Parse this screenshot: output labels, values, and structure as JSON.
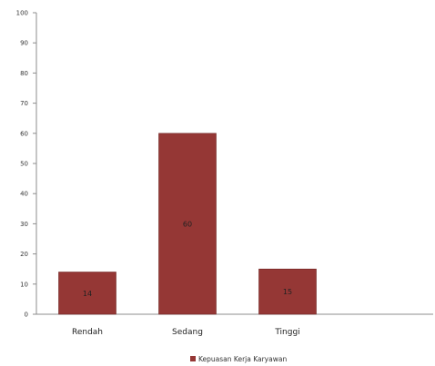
{
  "chart_data": {
    "type": "bar",
    "categories": [
      "Rendah",
      "Sedang",
      "Tinggi"
    ],
    "series": [
      {
        "name": "Kepuasan Kerja Karyawan",
        "values": [
          14,
          60,
          15
        ],
        "color": "#953735"
      }
    ],
    "data_labels": [
      "14",
      "60",
      "15"
    ],
    "ylim": [
      0,
      100
    ],
    "yticks": [
      0,
      10,
      20,
      30,
      40,
      50,
      60,
      70,
      80,
      90,
      100
    ],
    "grid": false,
    "legend_position": "bottom-center"
  }
}
